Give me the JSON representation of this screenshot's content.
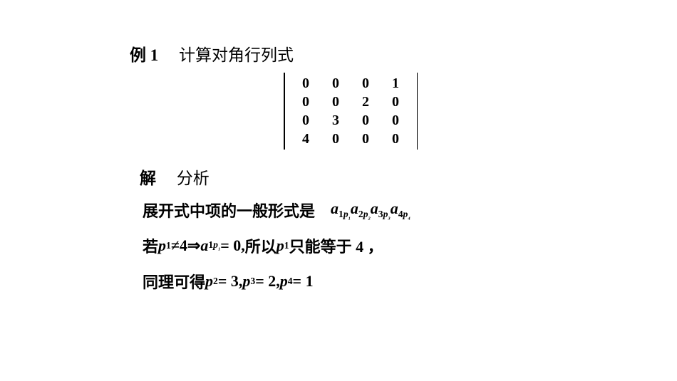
{
  "title": {
    "label": "例 1",
    "text": "计算对角行列式"
  },
  "matrix": {
    "rows": [
      [
        "0",
        "0",
        "0",
        "1"
      ],
      [
        "0",
        "0",
        "2",
        "0"
      ],
      [
        "0",
        "3",
        "0",
        "0"
      ],
      [
        "4",
        "0",
        "0",
        "0"
      ]
    ]
  },
  "jie": {
    "label": "解",
    "text": "分析"
  },
  "line1": {
    "text": "展开式中项的一般形式是",
    "term_a": "a",
    "s1n": "1",
    "s1p": "p",
    "s1pn": "1",
    "s2n": "2",
    "s2p": "p",
    "s2pn": "2",
    "s3n": "3",
    "s3p": "p",
    "s3pn": "3",
    "s4n": "4",
    "s4p": "p",
    "s4pn": "4"
  },
  "line2": {
    "pre": "若 ",
    "p": "p",
    "p1": "1",
    "neq": " ≠ ",
    "four": "4",
    "arrow": "  ⇒  ",
    "a": "a",
    "a1": "1",
    "ap": "p",
    "apn": "1",
    "eq0": " = 0,",
    "so": "所以    ",
    "p_again": "p",
    "p1_again": "1",
    "tail": "只能等于 4    ，"
  },
  "line3": {
    "pre": "同理可得  ",
    "p": "p",
    "p2": "2",
    "eq3": " = 3, ",
    "p3": "3",
    "eq2": " = 2, ",
    "p4": "4",
    "eq1": " = 1"
  },
  "style": {
    "text_color": "#000000",
    "background_color": "#ffffff",
    "base_fontsize_pt": 17,
    "math_font": "Times New Roman",
    "cjk_font": "SimSun"
  }
}
